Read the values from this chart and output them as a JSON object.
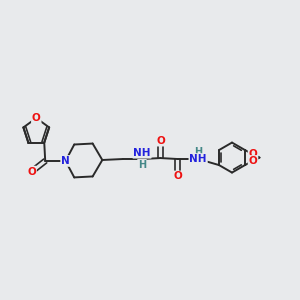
{
  "background_color": "#e8eaec",
  "bond_color": "#2a2a2a",
  "bond_width": 1.4,
  "atom_colors": {
    "O": "#ee1111",
    "N": "#2222dd",
    "H_color": "#448888",
    "C": "#2a2a2a"
  },
  "font_size_atom": 7.5,
  "xlim": [
    -0.2,
    6.0
  ],
  "ylim": [
    0.5,
    3.5
  ]
}
